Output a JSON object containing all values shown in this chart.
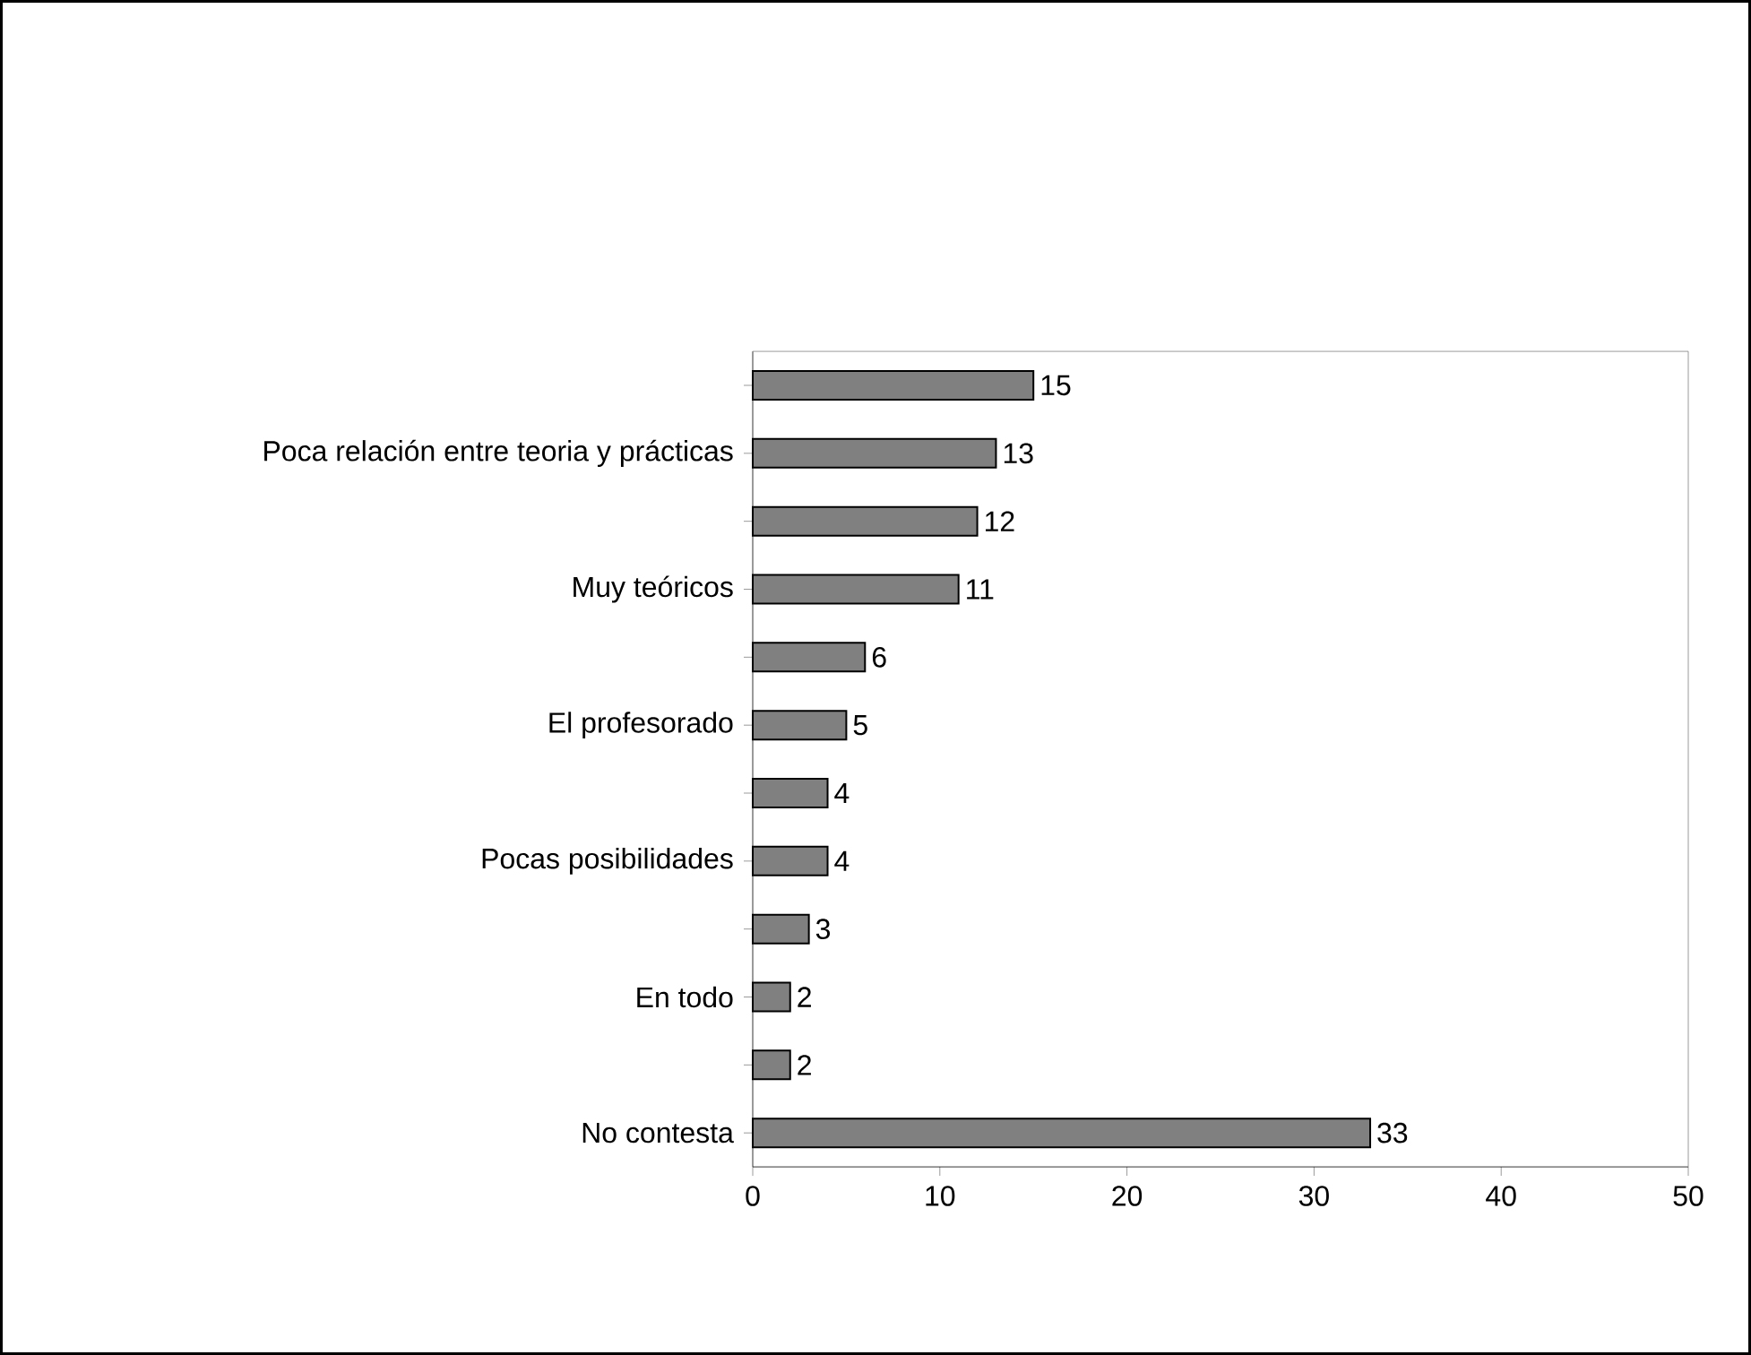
{
  "chart_data": {
    "type": "bar",
    "orientation": "horizontal",
    "categories": [
      null,
      "Poca relación entre teoria y prácticas",
      null,
      "Muy teóricos",
      null,
      "El profesorado",
      null,
      "Pocas posibilidades",
      null,
      "En todo",
      null,
      "No contesta"
    ],
    "values": [
      15,
      13,
      12,
      11,
      6,
      5,
      4,
      4,
      3,
      2,
      2,
      33
    ],
    "color": "#808080",
    "xlim": [
      0,
      50
    ],
    "xticks": [
      0,
      10,
      20,
      30,
      40,
      50
    ],
    "data_labels": true,
    "grid": false
  }
}
